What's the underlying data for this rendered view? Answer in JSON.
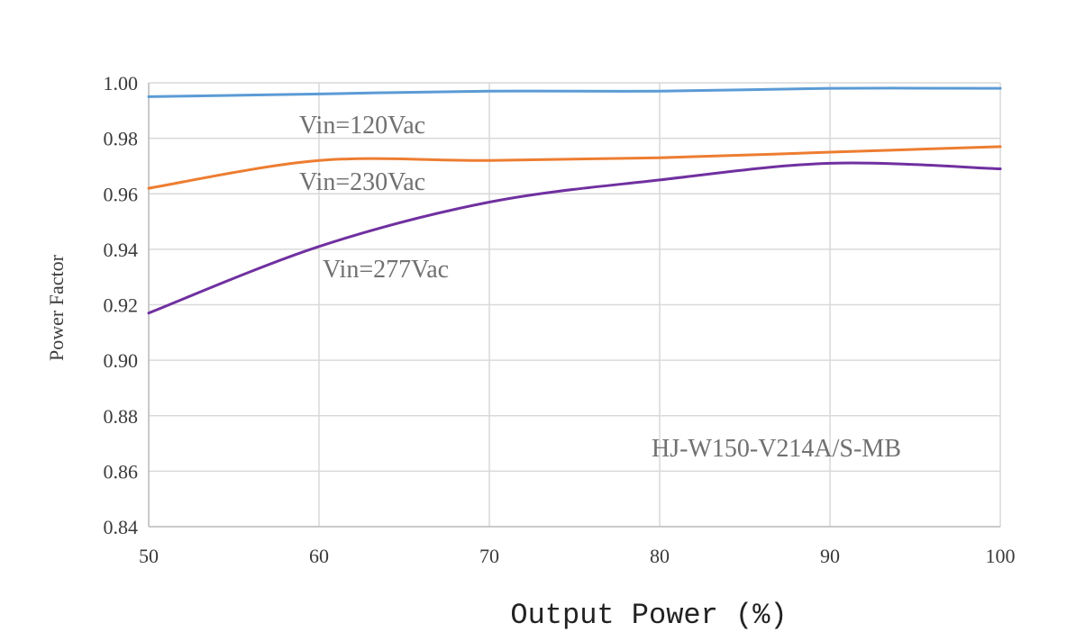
{
  "chart_data": {
    "type": "line",
    "xlabel": "Output Power (%)",
    "ylabel": "Power Factor",
    "xlim": [
      50,
      100
    ],
    "ylim": [
      0.84,
      1.0
    ],
    "x_ticks": [
      50,
      60,
      70,
      80,
      90,
      100
    ],
    "y_ticks": [
      "0.84",
      "0.86",
      "0.88",
      "0.90",
      "0.92",
      "0.94",
      "0.96",
      "0.98",
      "1.00"
    ],
    "grid": true,
    "annotation": "HJ-W150-V214A/S-MB",
    "series": [
      {
        "name": "Vin=120Vac",
        "color": "#5b9bd5",
        "x": [
          50,
          60,
          70,
          80,
          90,
          100
        ],
        "values": [
          0.995,
          0.996,
          0.997,
          0.997,
          0.998,
          0.998
        ]
      },
      {
        "name": "Vin=230Vac",
        "color": "#ed7d31",
        "x": [
          50,
          60,
          70,
          80,
          90,
          100
        ],
        "values": [
          0.962,
          0.972,
          0.972,
          0.973,
          0.975,
          0.977
        ]
      },
      {
        "name": "Vin=277Vac",
        "color": "#7030a0",
        "x": [
          50,
          60,
          70,
          80,
          90,
          100
        ],
        "values": [
          0.917,
          0.941,
          0.957,
          0.965,
          0.971,
          0.969
        ]
      }
    ]
  }
}
